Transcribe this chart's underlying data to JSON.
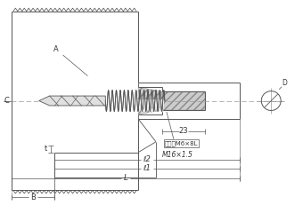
{
  "bg_color": "#ffffff",
  "lc": "#555555",
  "dc": "#555555",
  "tc": "#333333",
  "label_A": "A",
  "label_B": "B",
  "label_C": "C",
  "label_D": "D",
  "label_t": "t",
  "label_l1": "ℓ1",
  "label_l2": "ℓ2",
  "label_L": "L",
  "label_23": "23",
  "label_bolt": "ボロセM6×8L",
  "label_thread": "M16×1.5",
  "figsize": [
    3.4,
    2.4
  ],
  "dpi": 100
}
